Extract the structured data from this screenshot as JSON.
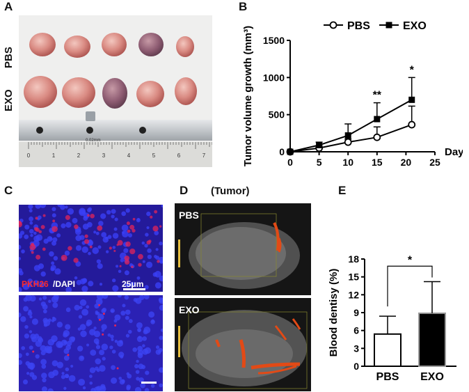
{
  "panels": {
    "A": {
      "letter": "A",
      "row_labels": [
        "PBS",
        "EXO"
      ],
      "caliper_text": "0.02mm",
      "ruler_numbers": [
        "0",
        "1",
        "2",
        "3",
        "4",
        "5",
        "6",
        "7"
      ]
    },
    "B": {
      "letter": "B",
      "chart_data": {
        "type": "line",
        "ylabel": "Tumor volume growth (mm³)",
        "xlabel": "Day",
        "x": [
          0,
          5,
          10,
          15,
          21
        ],
        "xlim": [
          0,
          25
        ],
        "ylim": [
          0,
          1500
        ],
        "xticks": [
          0,
          5,
          10,
          15,
          20,
          25
        ],
        "yticks": [
          0,
          500,
          1000,
          1500
        ],
        "legend_position": "top",
        "series": [
          {
            "name": "PBS",
            "marker": "open-circle",
            "values": [
              0,
              50,
              130,
              195,
              365
            ],
            "errors": [
              0,
              30,
              40,
              140,
              250
            ]
          },
          {
            "name": "EXO",
            "marker": "filled-square",
            "values": [
              0,
              90,
              220,
              440,
              700
            ],
            "errors": [
              0,
              40,
              155,
              220,
              300
            ]
          }
        ],
        "annotations": [
          {
            "x": 15,
            "text": "**"
          },
          {
            "x": 21,
            "text": "*"
          }
        ]
      }
    },
    "C": {
      "letter": "C",
      "stain_label_red": "PKH26",
      "stain_label_white": "/DAPI",
      "scalebar_label": "25μm"
    },
    "D": {
      "letter": "D",
      "title": "(Tumor)",
      "top_label": "PBS",
      "bottom_label": "EXO"
    },
    "E": {
      "letter": "E",
      "chart_data": {
        "type": "bar",
        "categories": [
          "PBS",
          "EXO"
        ],
        "values": [
          5.4,
          8.9
        ],
        "errors": [
          3.0,
          5.3
        ],
        "ylabel": "Blood dentisy (%)",
        "ylim": [
          0,
          18
        ],
        "yticks": [
          0,
          3,
          6,
          9,
          12,
          15,
          18
        ],
        "colors": [
          "#ffffff",
          "#000000"
        ],
        "significance": "*"
      }
    }
  }
}
